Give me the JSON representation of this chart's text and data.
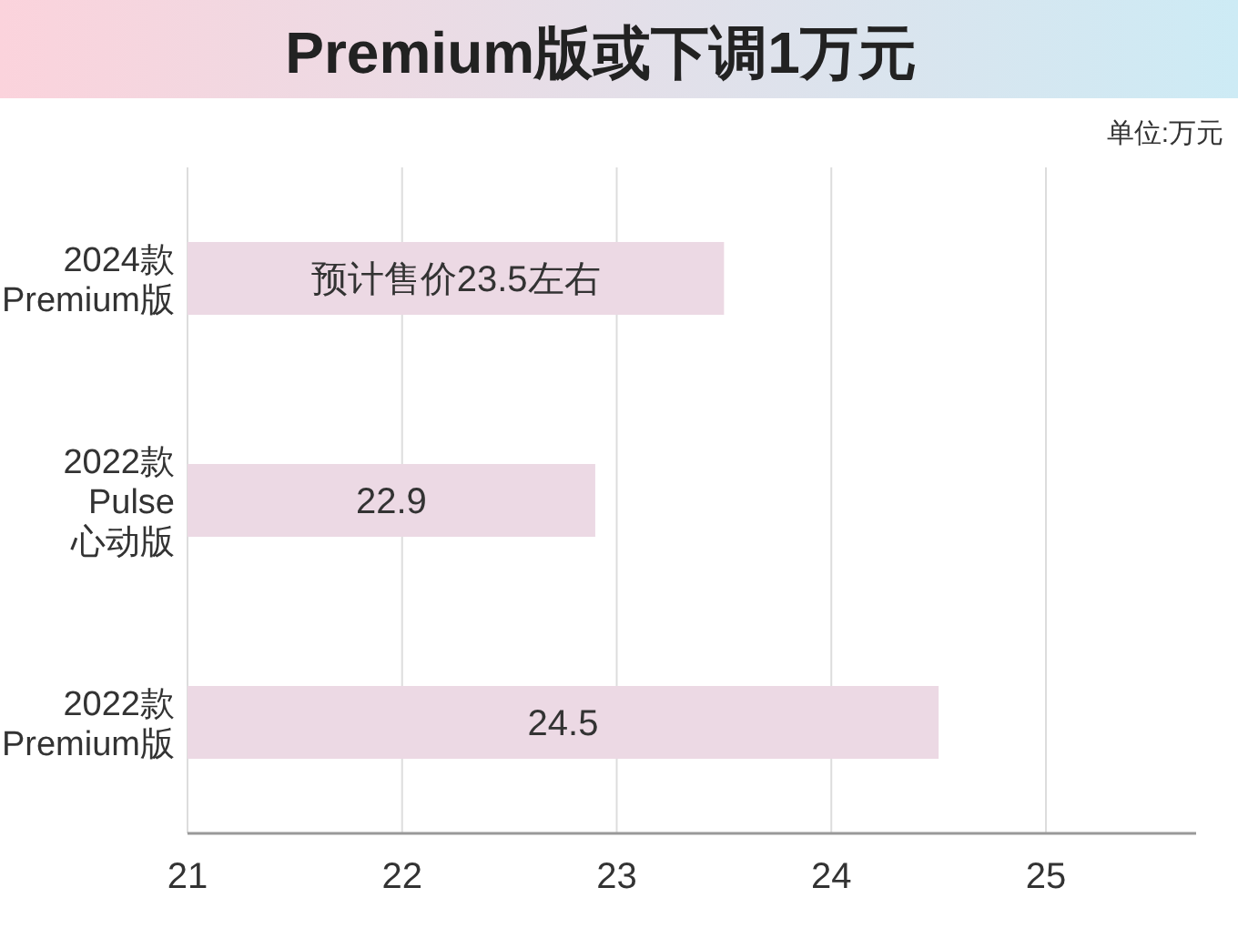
{
  "chart_data": {
    "type": "bar",
    "orientation": "horizontal",
    "title": "Premium版或下调1万元",
    "annotations": [
      "单位:万元"
    ],
    "categories": [
      "2024款\nPremium版",
      "2022款\nPulse\n心动版",
      "2022款\nPremium版"
    ],
    "values": [
      23.5,
      22.9,
      24.5
    ],
    "value_labels": [
      "预计售价23.5左右",
      "22.9",
      "24.5"
    ],
    "color": "#ecd9e4",
    "xlim": [
      21,
      25.7
    ],
    "xticks": [
      21,
      22,
      23,
      24,
      25
    ],
    "grid": "x"
  }
}
